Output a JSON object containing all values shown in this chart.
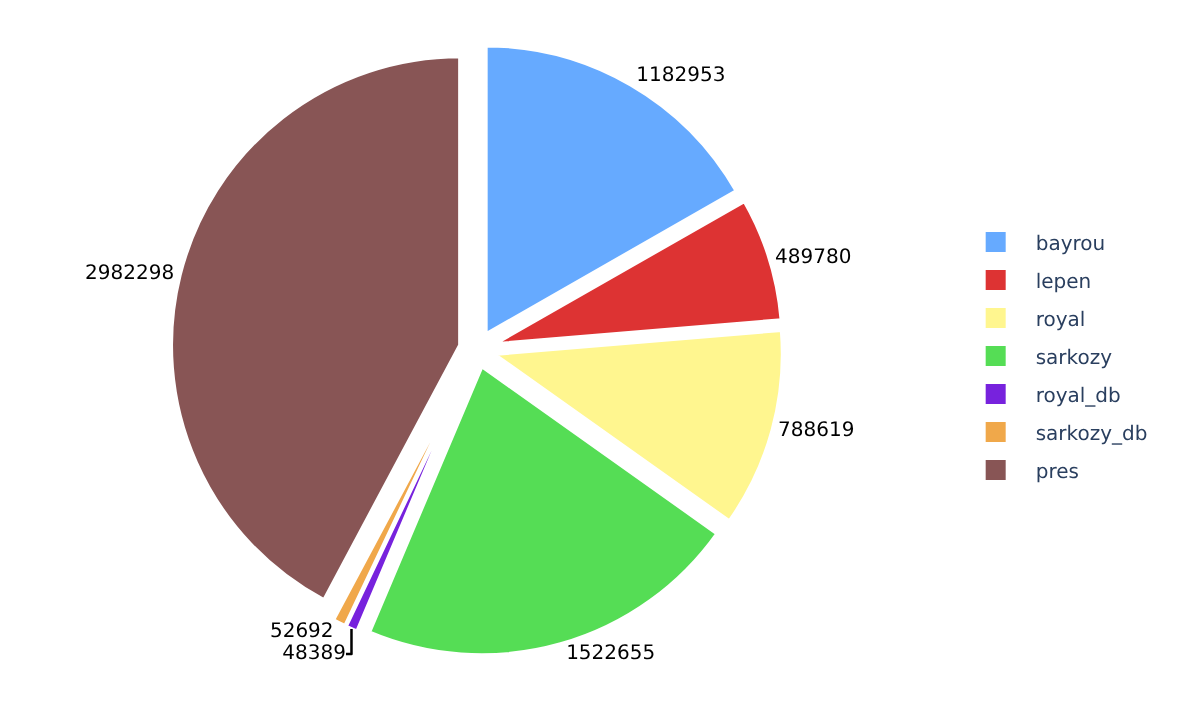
{
  "chart_data": {
    "type": "pie",
    "categories": [
      "bayrou",
      "lepen",
      "royal",
      "sarkozy",
      "royal_db",
      "sarkozy_db",
      "pres"
    ],
    "values": [
      1182953,
      489780,
      788619,
      1522655,
      48389,
      52692,
      2982298
    ],
    "colors": [
      "#66aaff",
      "#dd3333",
      "#fff68f",
      "#55dd55",
      "#7722dd",
      "#f0a84a",
      "#885555"
    ],
    "data_labels": true,
    "legend": "right"
  }
}
